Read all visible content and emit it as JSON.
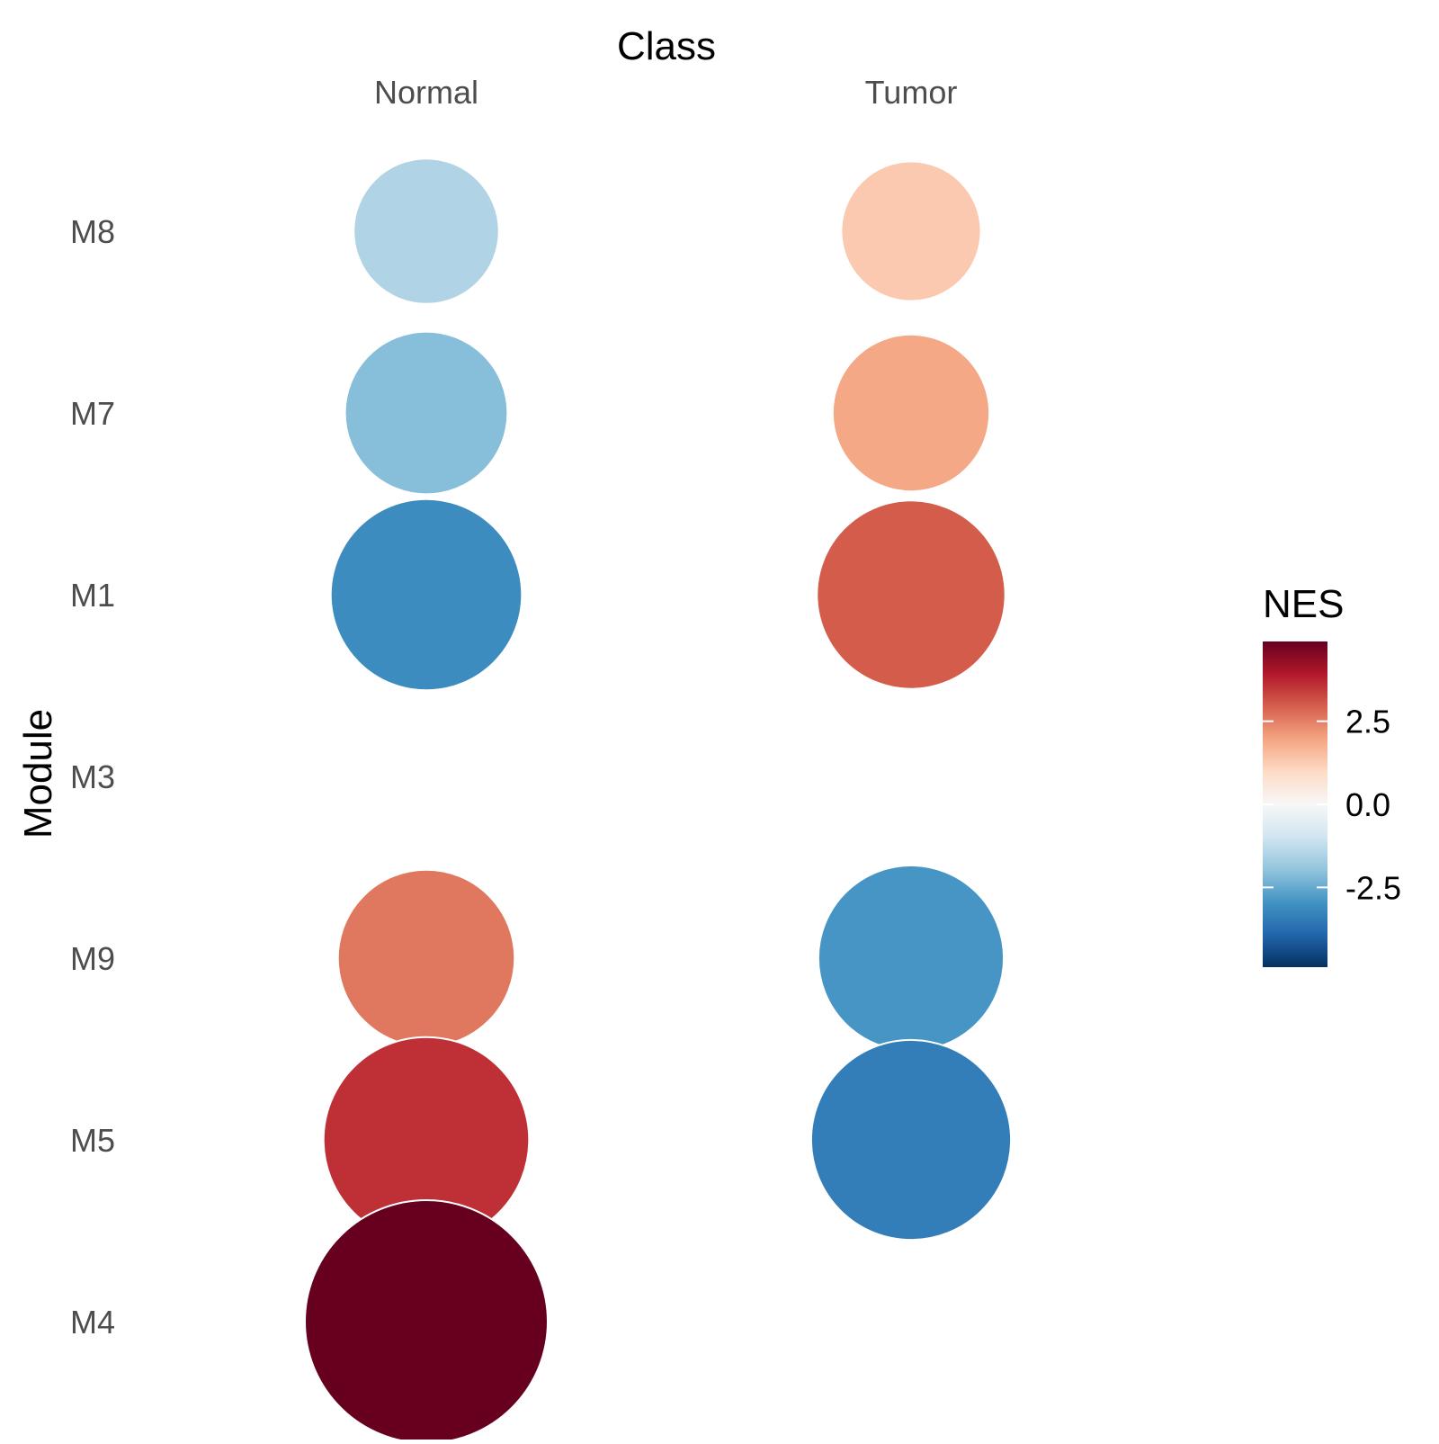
{
  "chart_data": {
    "type": "dotplot",
    "title": "",
    "x_axis_title": "Class",
    "y_axis_title": "Module",
    "x_categories": [
      "Normal",
      "Tumor"
    ],
    "y_categories": [
      "M8",
      "M7",
      "M1",
      "M3",
      "M9",
      "M5",
      "M4"
    ],
    "points": [
      {
        "class": "Normal",
        "module": "M8",
        "nes": -1.5
      },
      {
        "class": "Normal",
        "module": "M7",
        "nes": -2.1
      },
      {
        "class": "Normal",
        "module": "M1",
        "nes": -3.1
      },
      {
        "class": "Normal",
        "module": "M9",
        "nes": 2.6
      },
      {
        "class": "Normal",
        "module": "M5",
        "nes": 3.6
      },
      {
        "class": "Normal",
        "module": "M4",
        "nes": 4.9
      },
      {
        "class": "Tumor",
        "module": "M8",
        "nes": 1.3
      },
      {
        "class": "Tumor",
        "module": "M7",
        "nes": 1.9
      },
      {
        "class": "Tumor",
        "module": "M1",
        "nes": 3.0
      },
      {
        "class": "Tumor",
        "module": "M9",
        "nes": -2.9
      },
      {
        "class": "Tumor",
        "module": "M5",
        "nes": -3.4
      }
    ],
    "legend": {
      "title": "NES",
      "placement": "right",
      "range": [
        -4.9,
        4.9
      ],
      "ticks": [
        2.5,
        0.0,
        -2.5
      ],
      "tick_labels": [
        "2.5",
        "0.0",
        "-2.5"
      ],
      "palette": [
        "#053061",
        "#2166ac",
        "#4393c3",
        "#92c5de",
        "#d1e5f0",
        "#f7f7f7",
        "#fddbc7",
        "#f4a582",
        "#d6604d",
        "#b2182b",
        "#67001f"
      ]
    },
    "grid": false
  }
}
